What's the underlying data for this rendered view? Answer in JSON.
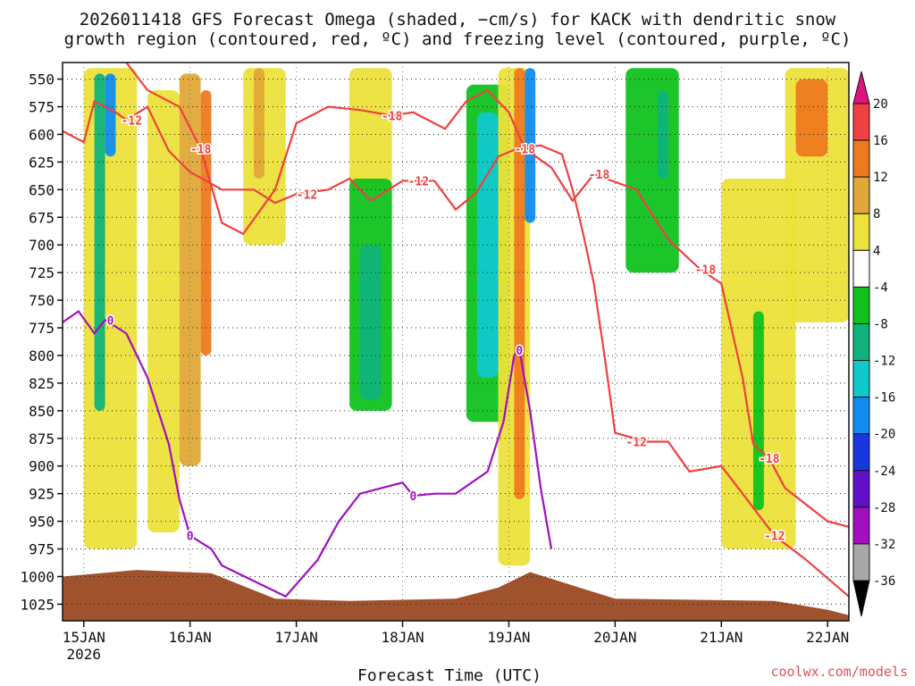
{
  "title_line1": "2026011418 GFS Forecast Omega (shaded, −cm/s) for KACK with dendritic snow",
  "title_line2": "growth region (contoured, red, ºC) and freezing level (contoured, purple, ºC)",
  "credit": "coolwx.com/models",
  "chart_data": {
    "type": "heatmap",
    "xlabel": "Forecast Time (UTC)",
    "x_ticks": [
      "15JAN",
      "16JAN",
      "17JAN",
      "18JAN",
      "19JAN",
      "20JAN",
      "21JAN",
      "22JAN"
    ],
    "x_tick_sublabel": "2026",
    "x_range_days": [
      14.8,
      22.2
    ],
    "ylabel": "",
    "y_ticks": [
      550,
      575,
      600,
      625,
      650,
      675,
      700,
      725,
      750,
      775,
      800,
      825,
      850,
      875,
      900,
      925,
      950,
      975,
      1000,
      1025
    ],
    "y_range_hpa": [
      535,
      1040
    ],
    "grid": true,
    "colorbar": {
      "labels": [
        "20",
        "16",
        "12",
        "8",
        "4",
        "-4",
        "-8",
        "-12",
        "-16",
        "-20",
        "-24",
        "-28",
        "-32",
        "-36"
      ],
      "bins": [
        {
          "range": ">20",
          "color": "#e0147e"
        },
        {
          "range": "16 to 20",
          "color": "#f04040"
        },
        {
          "range": "12 to 16",
          "color": "#ee7a1e"
        },
        {
          "range": "8 to 12",
          "color": "#e0a838"
        },
        {
          "range": "4 to 8",
          "color": "#ece23a"
        },
        {
          "range": "-4 to 4",
          "color": "#ffffff"
        },
        {
          "range": "-8 to -4",
          "color": "#10c21e"
        },
        {
          "range": "-12 to -8",
          "color": "#10b47a"
        },
        {
          "range": "-16 to -12",
          "color": "#10c8cc"
        },
        {
          "range": "-20 to -16",
          "color": "#108cf0"
        },
        {
          "range": "-24 to -20",
          "color": "#1a36e0"
        },
        {
          "range": "-28 to -24",
          "color": "#6010c8"
        },
        {
          "range": "-32 to -28",
          "color": "#a010c0"
        },
        {
          "range": "-36 to -32",
          "color": "#a8a8a8"
        },
        {
          "range": "<-36",
          "color": "#000000"
        }
      ]
    },
    "shaded_regions": [
      {
        "day_start": 15.0,
        "day_end": 15.5,
        "p_top": 540,
        "p_bottom": 975,
        "category": "4 to 8"
      },
      {
        "day_start": 15.1,
        "day_end": 15.2,
        "p_top": 545,
        "p_bottom": 850,
        "category": "-12 to -8"
      },
      {
        "day_start": 15.2,
        "day_end": 15.3,
        "p_top": 545,
        "p_bottom": 620,
        "category": "-20 to -16"
      },
      {
        "day_start": 15.6,
        "day_end": 15.9,
        "p_top": 560,
        "p_bottom": 960,
        "category": "4 to 8"
      },
      {
        "day_start": 15.9,
        "day_end": 16.1,
        "p_top": 545,
        "p_bottom": 900,
        "category": "8 to 12"
      },
      {
        "day_start": 16.1,
        "day_end": 16.2,
        "p_top": 560,
        "p_bottom": 800,
        "category": "12 to 16"
      },
      {
        "day_start": 16.5,
        "day_end": 16.9,
        "p_top": 540,
        "p_bottom": 700,
        "category": "4 to 8"
      },
      {
        "day_start": 16.6,
        "day_end": 16.7,
        "p_top": 540,
        "p_bottom": 640,
        "category": "8 to 12"
      },
      {
        "day_start": 17.5,
        "day_end": 17.9,
        "p_top": 540,
        "p_bottom": 650,
        "category": "4 to 8"
      },
      {
        "day_start": 17.5,
        "day_end": 17.9,
        "p_top": 640,
        "p_bottom": 850,
        "category": "-8 to -4"
      },
      {
        "day_start": 17.6,
        "day_end": 17.8,
        "p_top": 700,
        "p_bottom": 840,
        "category": "-12 to -8"
      },
      {
        "day_start": 18.6,
        "day_end": 19.0,
        "p_top": 555,
        "p_bottom": 860,
        "category": "-8 to -4"
      },
      {
        "day_start": 18.7,
        "day_end": 18.9,
        "p_top": 580,
        "p_bottom": 820,
        "category": "-16 to -12"
      },
      {
        "day_start": 18.9,
        "day_end": 19.2,
        "p_top": 540,
        "p_bottom": 990,
        "category": "4 to 8"
      },
      {
        "day_start": 19.05,
        "day_end": 19.15,
        "p_top": 540,
        "p_bottom": 930,
        "category": "12 to 16"
      },
      {
        "day_start": 19.15,
        "day_end": 19.25,
        "p_top": 540,
        "p_bottom": 680,
        "category": "-20 to -16"
      },
      {
        "day_start": 20.1,
        "day_end": 20.6,
        "p_top": 540,
        "p_bottom": 725,
        "category": "-8 to -4"
      },
      {
        "day_start": 20.4,
        "day_end": 20.5,
        "p_top": 560,
        "p_bottom": 640,
        "category": "-12 to -8"
      },
      {
        "day_start": 21.0,
        "day_end": 21.7,
        "p_top": 640,
        "p_bottom": 975,
        "category": "4 to 8"
      },
      {
        "day_start": 21.3,
        "day_end": 21.4,
        "p_top": 760,
        "p_bottom": 940,
        "category": "-8 to -4"
      },
      {
        "day_start": 21.6,
        "day_end": 22.2,
        "p_top": 540,
        "p_bottom": 770,
        "category": "4 to 8"
      },
      {
        "day_start": 21.7,
        "day_end": 22.0,
        "p_top": 550,
        "p_bottom": 620,
        "category": "12 to 16"
      }
    ],
    "contours": [
      {
        "label": "-12",
        "color": "#f04040",
        "label_positions": [
          [
            15.45,
            587
          ],
          [
            17.1,
            654
          ],
          [
            18.15,
            642
          ],
          [
            20.2,
            878
          ],
          [
            21.5,
            963
          ]
        ],
        "points": [
          [
            14.8,
            597
          ],
          [
            15.0,
            607
          ],
          [
            15.1,
            570
          ],
          [
            15.3,
            580
          ],
          [
            15.4,
            587
          ],
          [
            15.6,
            575
          ],
          [
            15.8,
            615
          ],
          [
            16.0,
            634
          ],
          [
            16.3,
            650
          ],
          [
            16.6,
            650
          ],
          [
            16.8,
            662
          ],
          [
            17.0,
            654
          ],
          [
            17.3,
            650
          ],
          [
            17.5,
            640
          ],
          [
            17.7,
            660
          ],
          [
            18.0,
            642
          ],
          [
            18.3,
            642
          ],
          [
            18.5,
            668
          ],
          [
            18.7,
            652
          ],
          [
            18.9,
            620
          ],
          [
            19.1,
            612
          ],
          [
            19.3,
            610
          ],
          [
            19.5,
            618
          ],
          [
            19.6,
            650
          ],
          [
            19.7,
            690
          ],
          [
            19.8,
            735
          ],
          [
            19.9,
            800
          ],
          [
            20.0,
            870
          ],
          [
            20.3,
            878
          ],
          [
            20.5,
            878
          ],
          [
            20.7,
            905
          ],
          [
            21.0,
            900
          ],
          [
            21.2,
            925
          ],
          [
            21.5,
            963
          ],
          [
            21.8,
            985
          ],
          [
            22.2,
            1018
          ]
        ]
      },
      {
        "label": "-18",
        "color": "#f04040",
        "label_positions": [
          [
            16.1,
            613
          ],
          [
            17.9,
            583
          ],
          [
            19.15,
            613
          ],
          [
            19.85,
            636
          ],
          [
            20.85,
            722
          ],
          [
            21.45,
            893
          ]
        ],
        "points": [
          [
            15.4,
            535
          ],
          [
            15.6,
            560
          ],
          [
            15.9,
            575
          ],
          [
            16.1,
            613
          ],
          [
            16.3,
            680
          ],
          [
            16.5,
            690
          ],
          [
            16.8,
            650
          ],
          [
            17.0,
            590
          ],
          [
            17.3,
            575
          ],
          [
            17.6,
            578
          ],
          [
            17.9,
            583
          ],
          [
            18.1,
            580
          ],
          [
            18.4,
            595
          ],
          [
            18.6,
            570
          ],
          [
            18.8,
            560
          ],
          [
            19.0,
            580
          ],
          [
            19.15,
            613
          ],
          [
            19.4,
            630
          ],
          [
            19.6,
            660
          ],
          [
            19.8,
            636
          ],
          [
            20.2,
            650
          ],
          [
            20.5,
            695
          ],
          [
            20.8,
            722
          ],
          [
            21.0,
            735
          ],
          [
            21.2,
            820
          ],
          [
            21.3,
            880
          ],
          [
            21.45,
            893
          ],
          [
            21.6,
            920
          ],
          [
            22.0,
            950
          ],
          [
            22.2,
            955
          ]
        ]
      },
      {
        "label": "0",
        "color": "#a010c0",
        "label_positions": [
          [
            15.25,
            768
          ],
          [
            16.0,
            963
          ],
          [
            18.1,
            927
          ],
          [
            19.1,
            795
          ]
        ],
        "points": [
          [
            14.8,
            770
          ],
          [
            14.95,
            760
          ],
          [
            15.1,
            780
          ],
          [
            15.2,
            768
          ],
          [
            15.4,
            780
          ],
          [
            15.6,
            820
          ],
          [
            15.8,
            880
          ],
          [
            15.9,
            930
          ],
          [
            16.0,
            963
          ],
          [
            16.2,
            975
          ],
          [
            16.3,
            990
          ],
          [
            16.9,
            1018
          ],
          [
            17.2,
            985
          ],
          [
            17.4,
            950
          ],
          [
            17.6,
            925
          ],
          [
            17.8,
            920
          ],
          [
            18.0,
            915
          ],
          [
            18.1,
            927
          ],
          [
            18.3,
            925
          ],
          [
            18.5,
            925
          ],
          [
            18.8,
            905
          ],
          [
            18.95,
            860
          ],
          [
            19.05,
            800
          ],
          [
            19.1,
            795
          ],
          [
            19.2,
            850
          ],
          [
            19.3,
            920
          ],
          [
            19.4,
            975
          ]
        ]
      }
    ],
    "terrain_color": "#a0522d"
  }
}
